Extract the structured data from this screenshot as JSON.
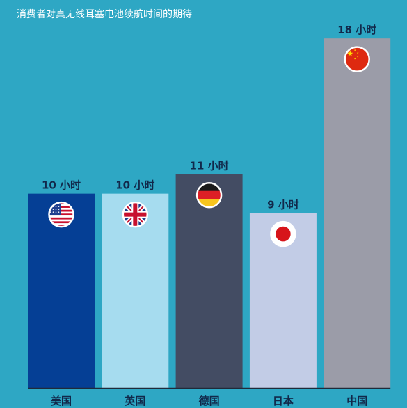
{
  "chart_data": {
    "type": "bar",
    "title": "消费者对真无线耳塞电池续航时间的期待",
    "xlabel": "",
    "ylabel": "",
    "ylim": [
      0,
      18.4
    ],
    "grid": false,
    "categories": [
      "美国",
      "英国",
      "德国",
      "日本",
      "中国"
    ],
    "values": [
      10,
      10,
      11,
      9,
      18
    ],
    "value_labels": [
      "10 小时",
      "10 小时",
      "11 小时",
      "9 小时",
      "18 小时"
    ],
    "bar_colors": [
      "#053f95",
      "#a6dcef",
      "#434c63",
      "#c2cce6",
      "#9b9ca8"
    ],
    "flag_icons": [
      "us-flag-icon",
      "uk-flag-icon",
      "germany-flag-icon",
      "japan-flag-icon",
      "china-flag-icon"
    ]
  },
  "colors": {
    "background": "#2ea7c4",
    "label_text": "#11284a",
    "title_text": "#ffffff",
    "baseline": "#1f2a3a"
  }
}
